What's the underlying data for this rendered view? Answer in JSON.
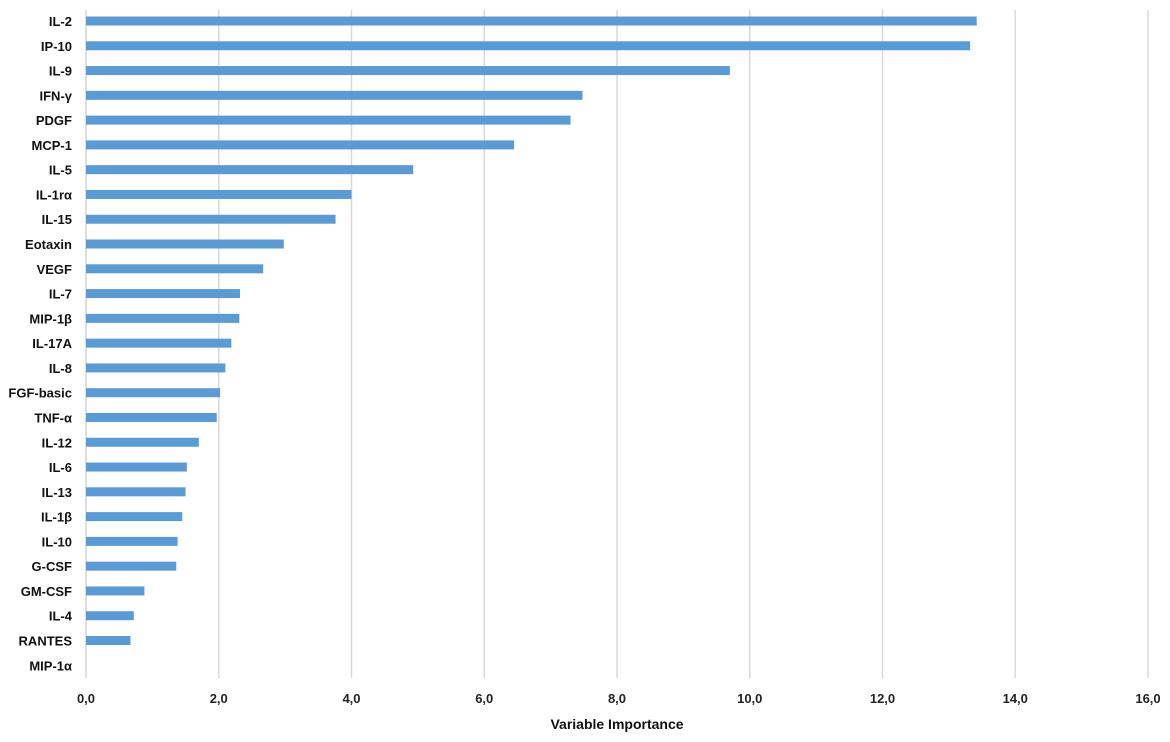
{
  "chart_data": {
    "type": "bar",
    "orientation": "horizontal",
    "categories": [
      "IL-2",
      "IP-10",
      "IL-9",
      "IFN-γ",
      "PDGF",
      "MCP-1",
      "IL-5",
      "IL-1rα",
      "IL-15",
      "Eotaxin",
      "VEGF",
      "IL-7",
      "MIP-1β",
      "IL-17A",
      "IL-8",
      "FGF-basic",
      "TNF-α",
      "IL-12",
      "IL-6",
      "IL-13",
      "IL-1β",
      "IL-10",
      "G-CSF",
      "GM-CSF",
      "IL-4",
      "RANTES",
      "MIP-1α"
    ],
    "values": [
      13.42,
      13.32,
      9.7,
      7.48,
      7.3,
      6.45,
      4.93,
      4.0,
      3.76,
      2.98,
      2.67,
      2.32,
      2.31,
      2.19,
      2.1,
      2.02,
      1.97,
      1.7,
      1.52,
      1.5,
      1.45,
      1.38,
      1.36,
      0.88,
      0.72,
      0.67,
      0.0
    ],
    "title": "",
    "xlabel": "Variable Importance",
    "ylabel": "",
    "xlim": [
      0,
      16
    ],
    "xticks": [
      "0,0",
      "2,0",
      "4,0",
      "6,0",
      "8,0",
      "10,0",
      "12,0",
      "14,0",
      "16,0"
    ],
    "grid": "vertical",
    "legend": "none",
    "bar_color": "#5b9bd5",
    "grid_color": "#d9d9d9"
  }
}
